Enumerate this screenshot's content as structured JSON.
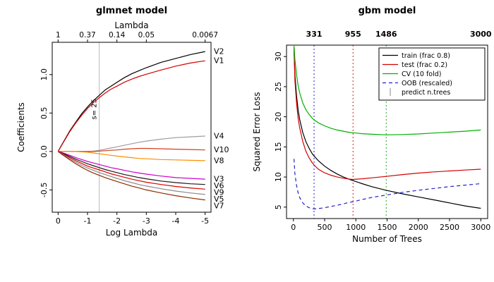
{
  "chart_data": [
    {
      "type": "line",
      "title": "glmnet model",
      "xlabel": "Log Lambda",
      "ylabel": "Coefficients",
      "xlim": [
        0.2,
        -5.2
      ],
      "ylim": [
        -0.79,
        1.42
      ],
      "x_ticks": [
        {
          "label": "0",
          "x": 0
        },
        {
          "label": "-1",
          "x": -1
        },
        {
          "label": "-2",
          "x": -2
        },
        {
          "label": "-3",
          "x": -3
        },
        {
          "label": "-4",
          "x": -4
        },
        {
          "label": "-5",
          "x": -5
        }
      ],
      "y_ticks": [
        {
          "label": "-0.5",
          "y": -0.5
        },
        {
          "label": "0.0",
          "y": 0
        },
        {
          "label": "0.5",
          "y": 0.5
        },
        {
          "label": "1.0",
          "y": 1
        }
      ],
      "top_axis": {
        "label": "Lambda",
        "ticks": [
          {
            "label": "1",
            "x": 0
          },
          {
            "label": "0.37",
            "x": -1
          },
          {
            "label": "0.14",
            "x": -2
          },
          {
            "label": "0.05",
            "x": -3
          },
          {
            "label": "0.0067",
            "x": -5
          }
        ]
      },
      "vline": {
        "x": -1.4,
        "label": "s= 25",
        "color": "#b8b8b8",
        "label_center_y": 0.55
      },
      "x": [
        0,
        -0.1,
        -0.25,
        -0.4,
        -0.6,
        -0.8,
        -1.0,
        -1.2,
        -1.4,
        -1.6,
        -1.8,
        -2.0,
        -2.25,
        -2.5,
        -2.75,
        -3.0,
        -3.5,
        -4.0,
        -4.5,
        -5.0
      ],
      "series": [
        {
          "name": "V2",
          "color": "#000000",
          "values": [
            0,
            0.07,
            0.17,
            0.27,
            0.38,
            0.49,
            0.58,
            0.66,
            0.73,
            0.8,
            0.85,
            0.9,
            0.96,
            1.01,
            1.05,
            1.09,
            1.16,
            1.21,
            1.26,
            1.3
          ]
        },
        {
          "name": "V1",
          "color": "#d40000",
          "values": [
            0,
            0.068,
            0.165,
            0.26,
            0.37,
            0.47,
            0.56,
            0.635,
            0.7,
            0.76,
            0.81,
            0.85,
            0.9,
            0.94,
            0.975,
            1.005,
            1.06,
            1.11,
            1.15,
            1.18
          ]
        },
        {
          "name": "V4",
          "color": "#9e9e9e",
          "values": [
            0,
            0,
            0,
            0,
            0,
            0,
            0,
            0.005,
            0.015,
            0.03,
            0.045,
            0.06,
            0.08,
            0.1,
            0.12,
            0.135,
            0.16,
            0.18,
            0.19,
            0.2
          ]
        },
        {
          "name": "V10",
          "color": "#d2401e",
          "values": [
            0,
            0,
            0,
            0,
            0,
            0,
            0,
            0,
            0.005,
            0.01,
            0.015,
            0.02,
            0.03,
            0.035,
            0.04,
            0.04,
            0.035,
            0.03,
            0.025,
            0.02
          ]
        },
        {
          "name": "V8",
          "color": "#ff8c00",
          "values": [
            0,
            0,
            0,
            0,
            0,
            -0.005,
            -0.01,
            -0.02,
            -0.03,
            -0.04,
            -0.05,
            -0.06,
            -0.07,
            -0.08,
            -0.09,
            -0.095,
            -0.105,
            -0.11,
            -0.115,
            -0.12
          ]
        },
        {
          "name": "V3",
          "color": "#cc00cc",
          "values": [
            0,
            -0.01,
            -0.03,
            -0.05,
            -0.08,
            -0.105,
            -0.13,
            -0.15,
            -0.17,
            -0.19,
            -0.21,
            -0.225,
            -0.245,
            -0.265,
            -0.28,
            -0.295,
            -0.32,
            -0.34,
            -0.35,
            -0.36
          ]
        },
        {
          "name": "V6",
          "color": "#1a1a1a",
          "values": [
            0,
            -0.015,
            -0.04,
            -0.065,
            -0.1,
            -0.13,
            -0.16,
            -0.185,
            -0.21,
            -0.235,
            -0.255,
            -0.275,
            -0.3,
            -0.32,
            -0.34,
            -0.355,
            -0.385,
            -0.405,
            -0.42,
            -0.43
          ]
        },
        {
          "name": "V9",
          "color": "#e00000",
          "values": [
            0,
            -0.02,
            -0.05,
            -0.08,
            -0.12,
            -0.155,
            -0.19,
            -0.215,
            -0.24,
            -0.265,
            -0.29,
            -0.31,
            -0.335,
            -0.36,
            -0.38,
            -0.4,
            -0.43,
            -0.455,
            -0.475,
            -0.49
          ]
        },
        {
          "name": "V5",
          "color": "#8a8a8a",
          "values": [
            0,
            -0.025,
            -0.06,
            -0.095,
            -0.14,
            -0.18,
            -0.215,
            -0.245,
            -0.275,
            -0.3,
            -0.325,
            -0.35,
            -0.38,
            -0.405,
            -0.43,
            -0.45,
            -0.485,
            -0.515,
            -0.54,
            -0.56
          ]
        },
        {
          "name": "V7",
          "color": "#8b2e00",
          "values": [
            0,
            -0.03,
            -0.07,
            -0.11,
            -0.16,
            -0.205,
            -0.245,
            -0.28,
            -0.31,
            -0.34,
            -0.365,
            -0.39,
            -0.42,
            -0.45,
            -0.475,
            -0.5,
            -0.54,
            -0.575,
            -0.605,
            -0.63
          ]
        }
      ]
    },
    {
      "type": "line",
      "title": "gbm model",
      "xlabel": "Number of Trees",
      "ylabel": "Squared Error Loss",
      "xlim": [
        -110,
        3110
      ],
      "ylim": [
        3.1,
        31.9
      ],
      "x_ticks": [
        0,
        500,
        1000,
        1500,
        2000,
        2500,
        3000
      ],
      "y_ticks": [
        5,
        10,
        15,
        20,
        25,
        30
      ],
      "top_ticks": [
        {
          "label": "331",
          "x": 331,
          "color": "#3333cc"
        },
        {
          "label": "955",
          "x": 955,
          "color": "#cc2222"
        },
        {
          "label": "1486",
          "x": 1486,
          "color": "#22aa22"
        },
        {
          "label": "3000",
          "x": 3000,
          "color": "#888888"
        }
      ],
      "vlines": [
        {
          "x": 331,
          "color": "#2222cc"
        },
        {
          "x": 955,
          "color": "#cc2222"
        },
        {
          "x": 1486,
          "color": "#22aa22"
        }
      ],
      "x": [
        10,
        25,
        50,
        75,
        100,
        150,
        200,
        250,
        300,
        331,
        400,
        500,
        600,
        700,
        800,
        900,
        955,
        1100,
        1250,
        1486,
        1750,
        2000,
        2250,
        2500,
        2750,
        3000
      ],
      "series": [
        {
          "name": "train (frac 0.8)",
          "color": "#000000",
          "style": "solid",
          "values": [
            31.5,
            27.0,
            23.5,
            21.2,
            19.6,
            17.4,
            15.9,
            14.8,
            13.9,
            13.5,
            12.7,
            11.8,
            11.1,
            10.5,
            10.0,
            9.6,
            9.4,
            8.9,
            8.4,
            7.8,
            7.2,
            6.7,
            6.2,
            5.7,
            5.2,
            4.8
          ]
        },
        {
          "name": "test (frac 0.2)",
          "color": "#d40000",
          "style": "solid",
          "values": [
            31.0,
            26.0,
            22.3,
            19.8,
            18.2,
            15.9,
            14.3,
            13.2,
            12.4,
            12.0,
            11.3,
            10.7,
            10.3,
            10.0,
            9.8,
            9.65,
            9.6,
            9.7,
            9.85,
            10.1,
            10.4,
            10.65,
            10.85,
            11.0,
            11.15,
            11.3
          ]
        },
        {
          "name": "CV (10 fold)",
          "color": "#00b000",
          "style": "solid",
          "values": [
            31.8,
            29.5,
            27.0,
            25.2,
            24.0,
            22.3,
            21.2,
            20.4,
            19.8,
            19.5,
            19.0,
            18.5,
            18.1,
            17.8,
            17.6,
            17.4,
            17.35,
            17.2,
            17.1,
            17.0,
            17.05,
            17.15,
            17.3,
            17.45,
            17.6,
            17.8
          ]
        },
        {
          "name": "OOB (rescaled)",
          "color": "#2222cc",
          "style": "dashed",
          "values": [
            13.0,
            10.5,
            8.6,
            7.4,
            6.6,
            5.7,
            5.2,
            4.9,
            4.75,
            4.7,
            4.75,
            4.9,
            5.1,
            5.3,
            5.55,
            5.8,
            5.9,
            6.25,
            6.6,
            7.0,
            7.45,
            7.8,
            8.1,
            8.4,
            8.65,
            8.9
          ]
        }
      ],
      "legend": {
        "entries": [
          {
            "label": "train (frac 0.8)",
            "color": "#000000",
            "style": "solid"
          },
          {
            "label": "test (frac 0.2)",
            "color": "#d40000",
            "style": "solid"
          },
          {
            "label": "CV (10 fold)",
            "color": "#00b000",
            "style": "solid"
          },
          {
            "label": "OOB (rescaled)",
            "color": "#2222cc",
            "style": "dashed"
          },
          {
            "label": "predict n.trees",
            "color": "#999999",
            "style": "vline"
          }
        ]
      }
    }
  ]
}
